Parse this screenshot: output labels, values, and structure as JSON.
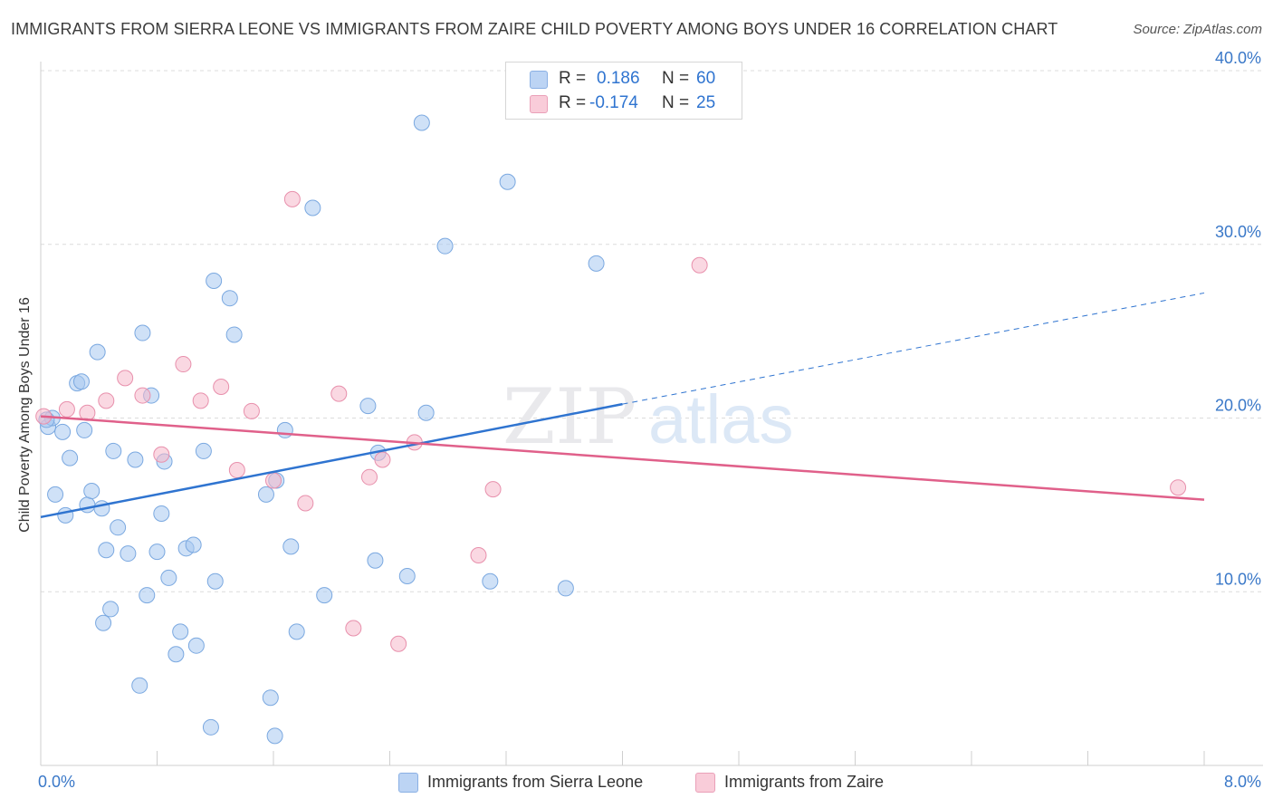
{
  "title": "IMMIGRANTS FROM SIERRA LEONE VS IMMIGRANTS FROM ZAIRE CHILD POVERTY AMONG BOYS UNDER 16 CORRELATION CHART",
  "source": "Source: ZipAtlas.com",
  "watermark": {
    "zip": "ZIP",
    "atlas": "atlas"
  },
  "legend": {
    "rows": [
      {
        "r_label": "R =",
        "r_value": "0.186",
        "n_label": "N =",
        "n_value": "60",
        "color": "#a8c8f0"
      },
      {
        "r_label": "R =",
        "r_value": "-0.174",
        "n_label": "N =",
        "n_value": "25",
        "color": "#f5b8cb"
      }
    ]
  },
  "chart_data": {
    "type": "scatter",
    "title": "IMMIGRANTS FROM SIERRA LEONE VS IMMIGRANTS FROM ZAIRE CHILD POVERTY AMONG BOYS UNDER 16 CORRELATION CHART",
    "xlabel": "",
    "ylabel": "Child Poverty Among Boys Under 16",
    "xlim": [
      0,
      8
    ],
    "ylim": [
      0,
      40
    ],
    "x_tick_labels": [
      "0.0%",
      "8.0%"
    ],
    "y_ticks": [
      10,
      20,
      30,
      40
    ],
    "y_tick_labels": [
      "10.0%",
      "20.0%",
      "30.0%",
      "40.0%"
    ],
    "grid": true,
    "legend_position": "top-center",
    "series": [
      {
        "name": "Immigrants from Sierra Leone",
        "color": "#a8c8f0",
        "stroke": "#7aa8e0",
        "line_color": "#2f74d0",
        "trend": {
          "x": [
            0.0,
            4.0
          ],
          "y": [
            14.3,
            20.8
          ],
          "dashed_to": [
            8.0,
            27.2
          ]
        },
        "points": [
          [
            0.05,
            19.5
          ],
          [
            0.08,
            20.0
          ],
          [
            0.15,
            19.2
          ],
          [
            0.1,
            15.6
          ],
          [
            0.17,
            14.4
          ],
          [
            0.2,
            17.7
          ],
          [
            0.25,
            22.0
          ],
          [
            0.28,
            22.1
          ],
          [
            0.3,
            19.3
          ],
          [
            0.32,
            15.0
          ],
          [
            0.35,
            15.8
          ],
          [
            0.39,
            23.8
          ],
          [
            0.42,
            14.8
          ],
          [
            0.45,
            12.4
          ],
          [
            0.48,
            9.0
          ],
          [
            0.5,
            18.1
          ],
          [
            0.53,
            13.7
          ],
          [
            0.43,
            8.2
          ],
          [
            0.6,
            12.2
          ],
          [
            0.65,
            17.6
          ],
          [
            0.68,
            4.6
          ],
          [
            0.7,
            24.9
          ],
          [
            0.73,
            9.8
          ],
          [
            0.76,
            21.3
          ],
          [
            0.8,
            12.3
          ],
          [
            0.83,
            14.5
          ],
          [
            0.85,
            17.5
          ],
          [
            0.88,
            10.8
          ],
          [
            0.93,
            6.4
          ],
          [
            0.96,
            7.7
          ],
          [
            1.0,
            12.5
          ],
          [
            1.05,
            12.7
          ],
          [
            1.07,
            6.9
          ],
          [
            1.12,
            18.1
          ],
          [
            1.17,
            2.2
          ],
          [
            1.19,
            27.9
          ],
          [
            1.2,
            10.6
          ],
          [
            1.3,
            26.9
          ],
          [
            1.33,
            24.8
          ],
          [
            1.58,
            3.9
          ],
          [
            1.61,
            1.7
          ],
          [
            1.55,
            15.6
          ],
          [
            1.62,
            16.4
          ],
          [
            1.68,
            19.3
          ],
          [
            1.72,
            12.6
          ],
          [
            1.76,
            7.7
          ],
          [
            1.87,
            32.1
          ],
          [
            1.95,
            9.8
          ],
          [
            2.25,
            20.7
          ],
          [
            2.3,
            11.8
          ],
          [
            2.32,
            18.0
          ],
          [
            2.52,
            10.9
          ],
          [
            2.65,
            20.3
          ],
          [
            2.62,
            37.0
          ],
          [
            2.78,
            29.9
          ],
          [
            3.09,
            10.6
          ],
          [
            3.21,
            33.6
          ],
          [
            3.61,
            10.2
          ],
          [
            3.82,
            28.9
          ],
          [
            0.04,
            19.9
          ]
        ]
      },
      {
        "name": "Immigrants from Zaire",
        "color": "#f5b8cb",
        "stroke": "#e890ac",
        "line_color": "#e0608a",
        "trend": {
          "x": [
            0.0,
            8.0
          ],
          "y": [
            20.1,
            15.3
          ]
        },
        "points": [
          [
            0.02,
            20.1
          ],
          [
            0.18,
            20.5
          ],
          [
            0.32,
            20.3
          ],
          [
            0.45,
            21.0
          ],
          [
            0.58,
            22.3
          ],
          [
            0.7,
            21.3
          ],
          [
            0.83,
            17.9
          ],
          [
            0.98,
            23.1
          ],
          [
            1.1,
            21.0
          ],
          [
            1.24,
            21.8
          ],
          [
            1.35,
            17.0
          ],
          [
            1.45,
            20.4
          ],
          [
            1.6,
            16.4
          ],
          [
            1.73,
            32.6
          ],
          [
            1.82,
            15.1
          ],
          [
            2.05,
            21.4
          ],
          [
            2.15,
            7.9
          ],
          [
            2.26,
            16.6
          ],
          [
            2.35,
            17.6
          ],
          [
            2.46,
            7.0
          ],
          [
            2.57,
            18.6
          ],
          [
            3.01,
            12.1
          ],
          [
            3.11,
            15.9
          ],
          [
            4.53,
            28.8
          ],
          [
            7.82,
            16.0
          ]
        ]
      }
    ]
  }
}
